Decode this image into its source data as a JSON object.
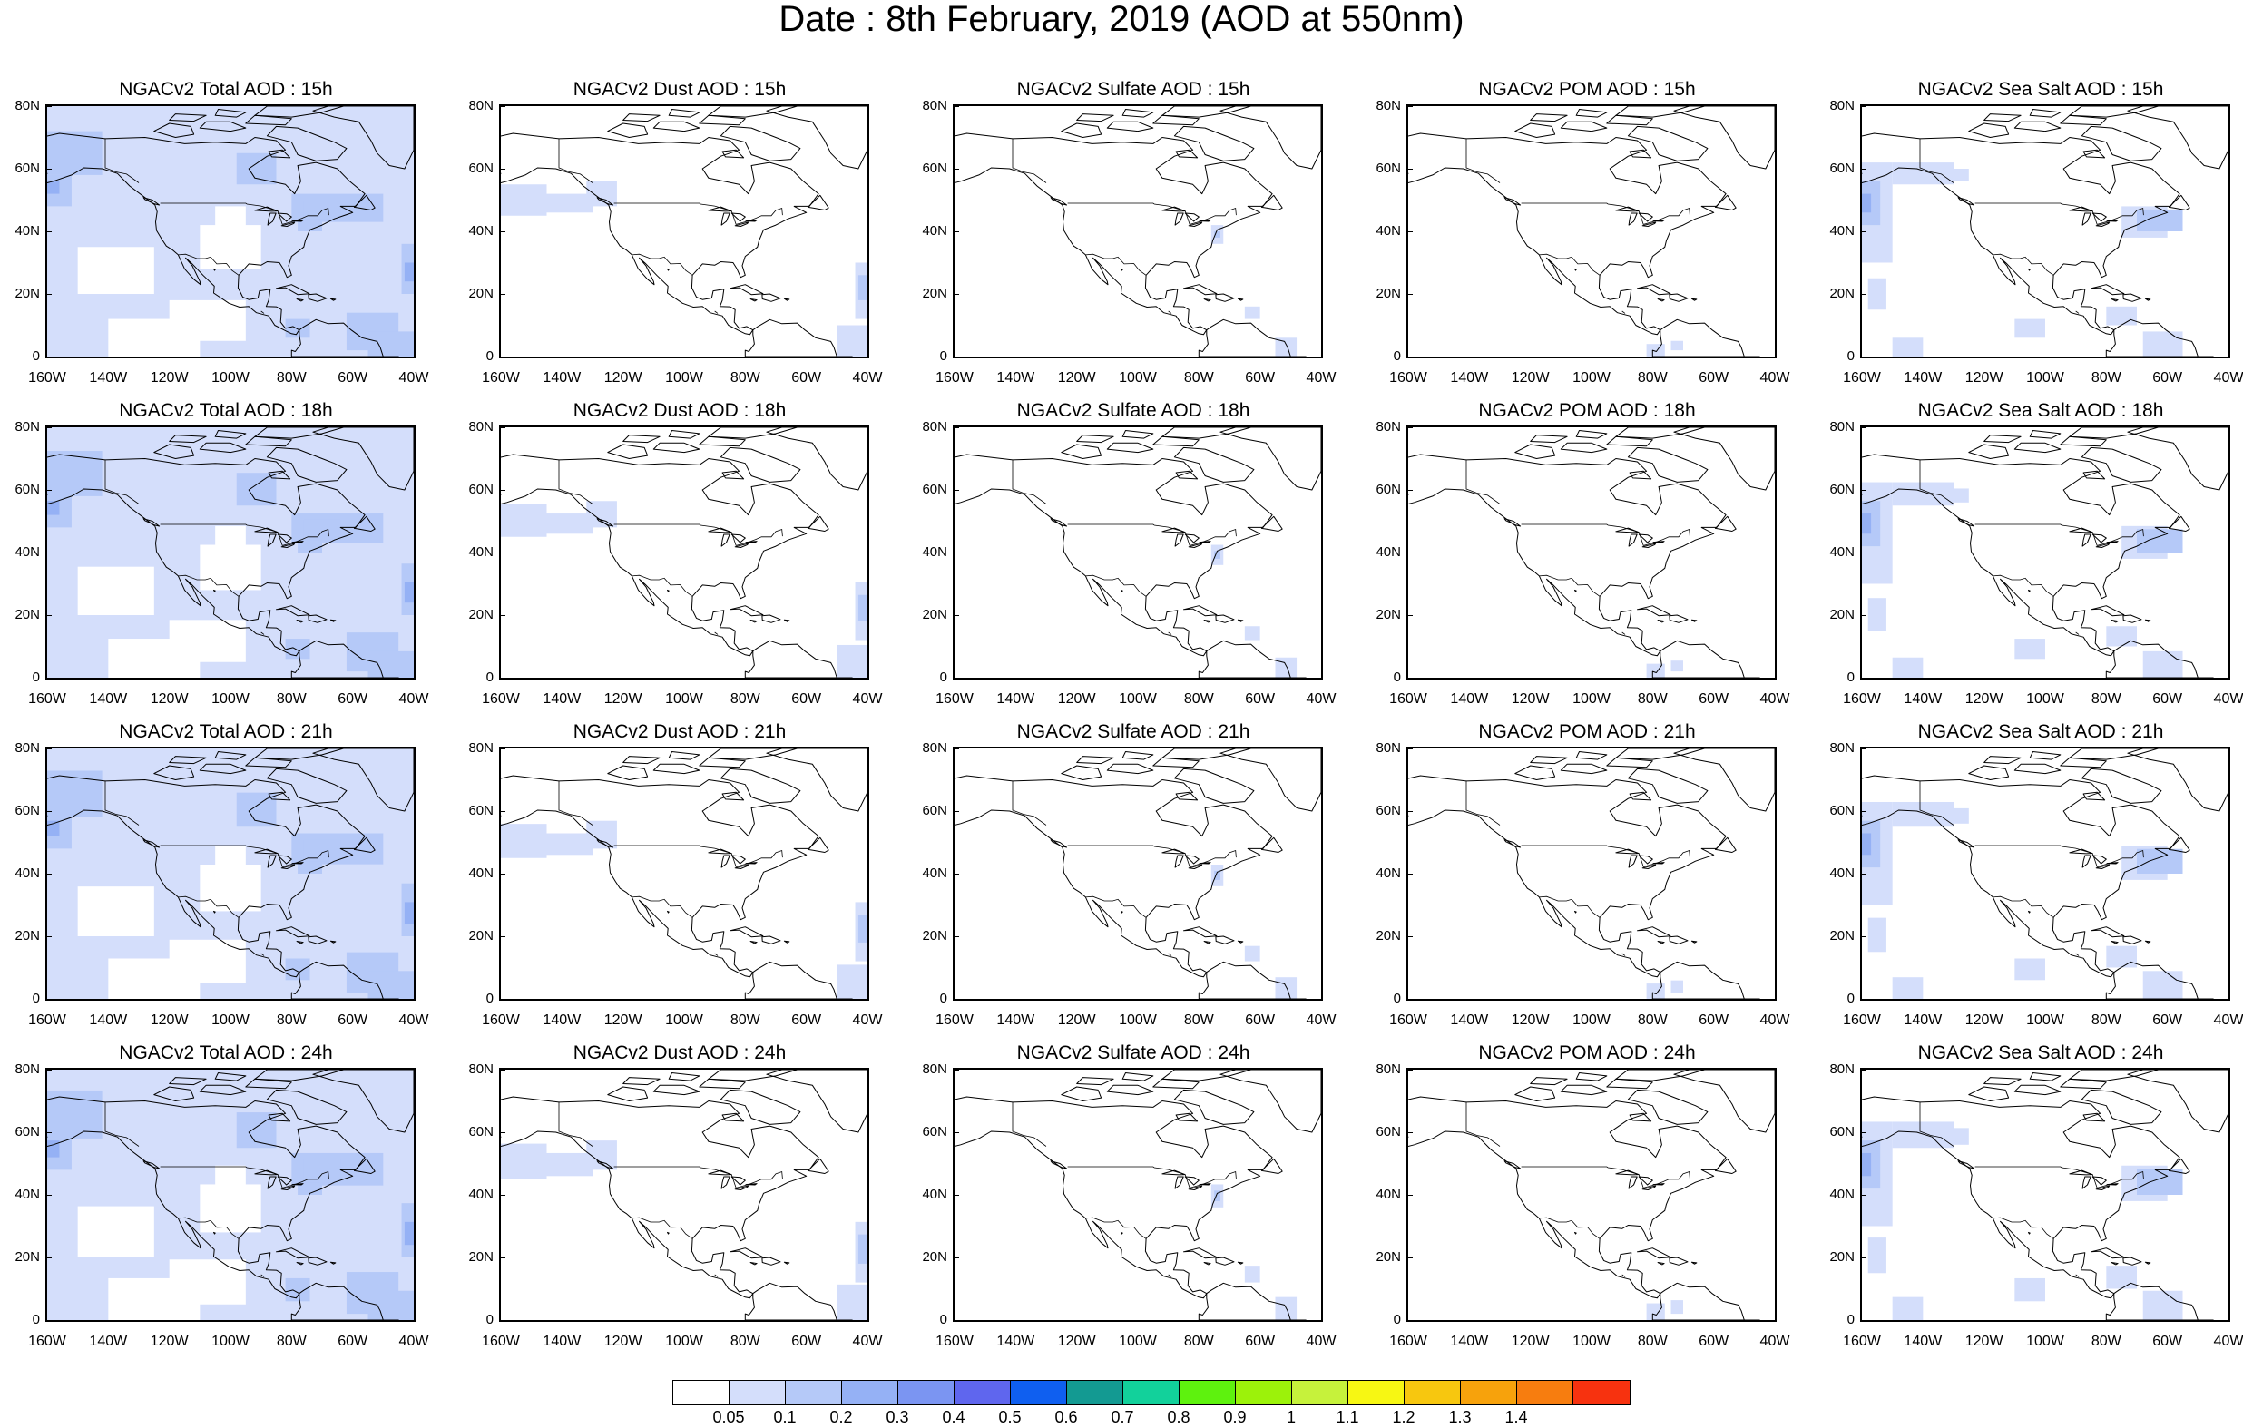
{
  "title": "Date : 8th February, 2019 (AOD at 550nm)",
  "panels": [
    [
      "NGACv2 Total AOD : 15h",
      "NGACv2 Dust AOD : 15h",
      "NGACv2 Sulfate AOD : 15h",
      "NGACv2 POM AOD : 15h",
      "NGACv2 Sea Salt AOD : 15h"
    ],
    [
      "NGACv2 Total AOD : 18h",
      "NGACv2 Dust AOD : 18h",
      "NGACv2 Sulfate AOD : 18h",
      "NGACv2 POM AOD : 18h",
      "NGACv2 Sea Salt AOD : 18h"
    ],
    [
      "NGACv2 Total AOD : 21h",
      "NGACv2 Dust AOD : 21h",
      "NGACv2 Sulfate AOD : 21h",
      "NGACv2 POM AOD : 21h",
      "NGACv2 Sea Salt AOD : 21h"
    ],
    [
      "NGACv2 Total AOD : 24h",
      "NGACv2 Dust AOD : 24h",
      "NGACv2 Sulfate AOD : 24h",
      "NGACv2 POM AOD : 24h",
      "NGACv2 Sea Salt  AOD : 24h"
    ]
  ],
  "y_ticks": [
    "80N",
    "60N",
    "40N",
    "20N",
    "0"
  ],
  "x_ticks": [
    "160W",
    "140W",
    "120W",
    "100W",
    "80W",
    "60W",
    "40W"
  ],
  "colorbar": {
    "colors": [
      "#ffffff",
      "#d4defb",
      "#b5c9f8",
      "#95b1f5",
      "#7b95f2",
      "#5f66ee",
      "#0f5ff0",
      "#139a92",
      "#12d19b",
      "#5ef20e",
      "#9cf20a",
      "#c6f23b",
      "#f7f713",
      "#f7c70f",
      "#f7a20c",
      "#f77d0f",
      "#f7320f"
    ],
    "labels": [
      "0.05",
      "0.1",
      "0.2",
      "0.3",
      "0.4",
      "0.5",
      "0.6",
      "0.7",
      "0.8",
      "0.9",
      "1",
      "1.1",
      "1.2",
      "1.3",
      "1.4"
    ]
  }
}
